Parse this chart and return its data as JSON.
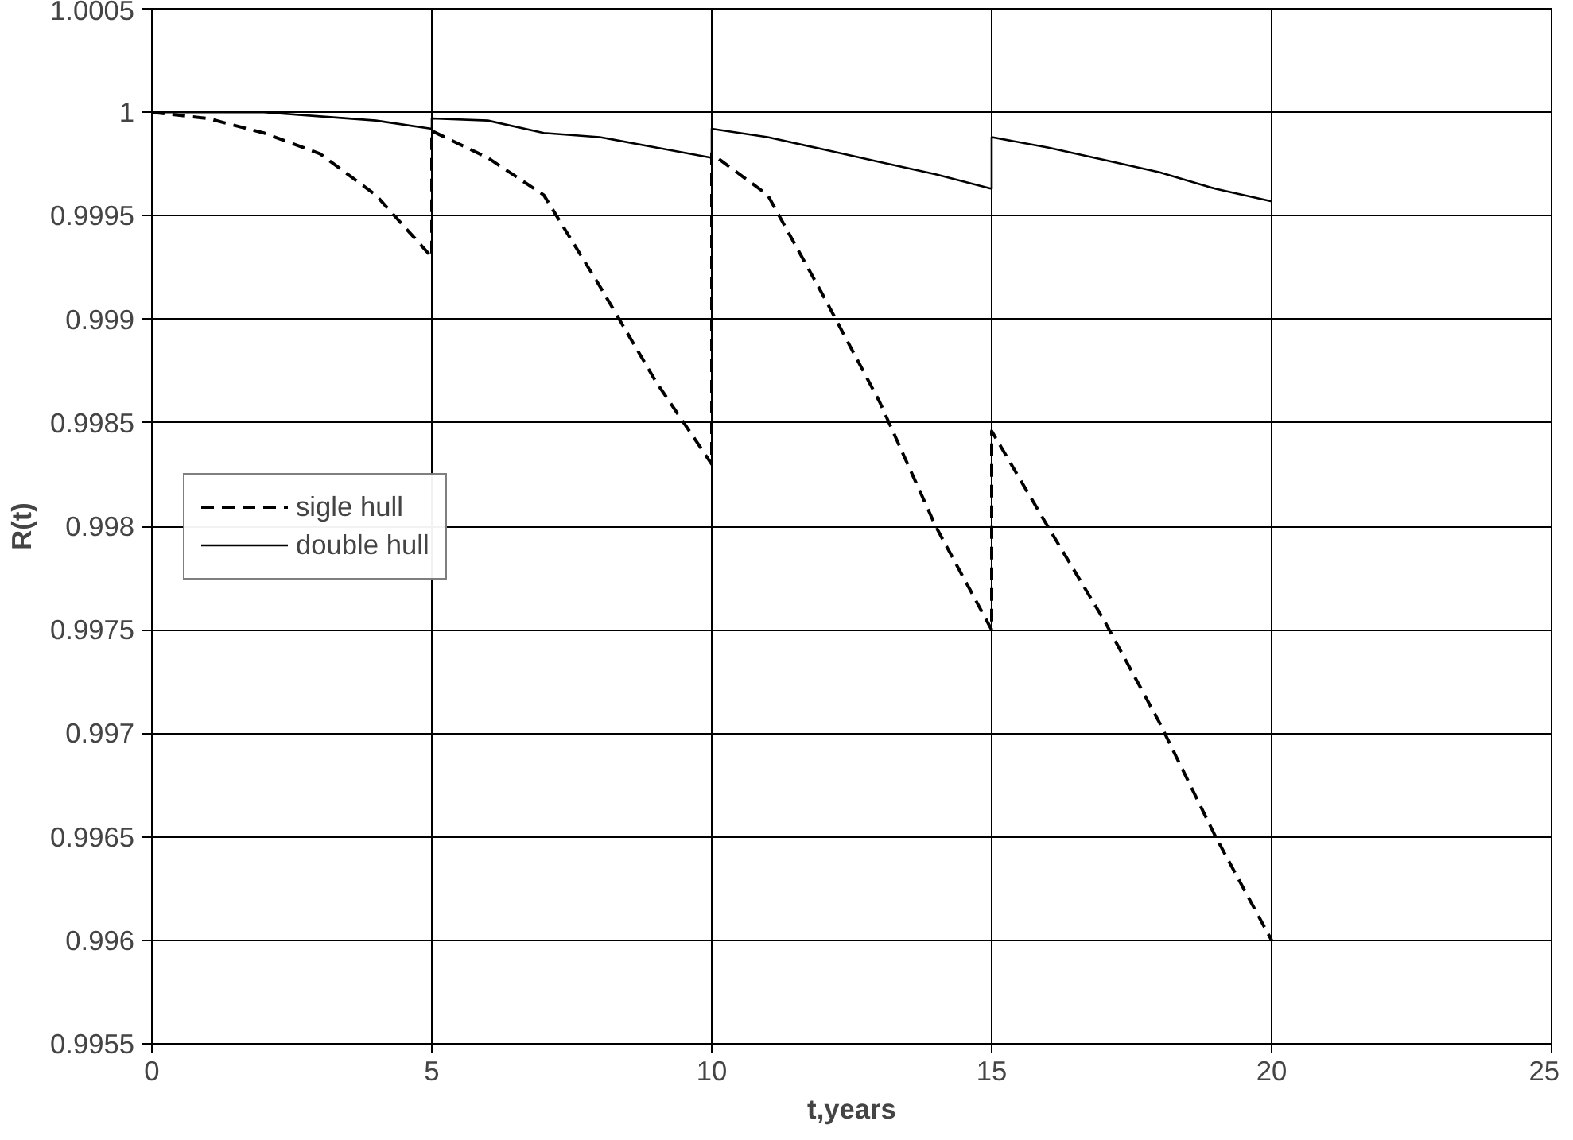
{
  "chart_data": {
    "type": "line",
    "xlabel": "t,years",
    "ylabel": "R(t)",
    "xlim": [
      0,
      25
    ],
    "xticks": [
      0,
      5,
      10,
      15,
      20,
      25
    ],
    "ylim": [
      0.9955,
      1.0005
    ],
    "yticks": [
      0.9955,
      0.996,
      0.9965,
      0.997,
      0.9975,
      0.998,
      0.9985,
      0.999,
      0.9995,
      1,
      1.0005
    ],
    "grid": true,
    "legend": "left",
    "marker": "none",
    "series": [
      {
        "name": "sigle hull",
        "color": "#000000",
        "line_style": "dashed",
        "x": [
          0,
          1,
          2,
          3,
          4,
          5,
          5,
          6,
          7,
          8,
          9,
          10,
          10,
          11,
          12,
          13,
          14,
          15,
          15,
          16,
          17,
          18,
          19,
          20
        ],
        "values": [
          1,
          0.99997,
          0.9999,
          0.9998,
          0.9996,
          0.9993,
          0.99991,
          0.99978,
          0.9996,
          0.99916,
          0.9987,
          0.9983,
          0.9998,
          0.9996,
          0.99911,
          0.9986,
          0.998,
          0.9975,
          0.99846,
          0.998,
          0.99755,
          0.99705,
          0.9965,
          0.996
        ]
      },
      {
        "name": "double hull",
        "color": "#000000",
        "line_style": "solid",
        "x": [
          0,
          1,
          2,
          3,
          4,
          5,
          5,
          6,
          7,
          8,
          9,
          10,
          10,
          11,
          12,
          13,
          14,
          15,
          15,
          16,
          17,
          18,
          19,
          20
        ],
        "values": [
          1,
          1,
          1,
          0.99998,
          0.99996,
          0.99992,
          0.99997,
          0.99996,
          0.9999,
          0.99988,
          0.99983,
          0.99978,
          0.99992,
          0.99988,
          0.99982,
          0.99976,
          0.9997,
          0.99963,
          0.99988,
          0.99983,
          0.99977,
          0.99971,
          0.99963,
          0.99957
        ]
      }
    ]
  }
}
